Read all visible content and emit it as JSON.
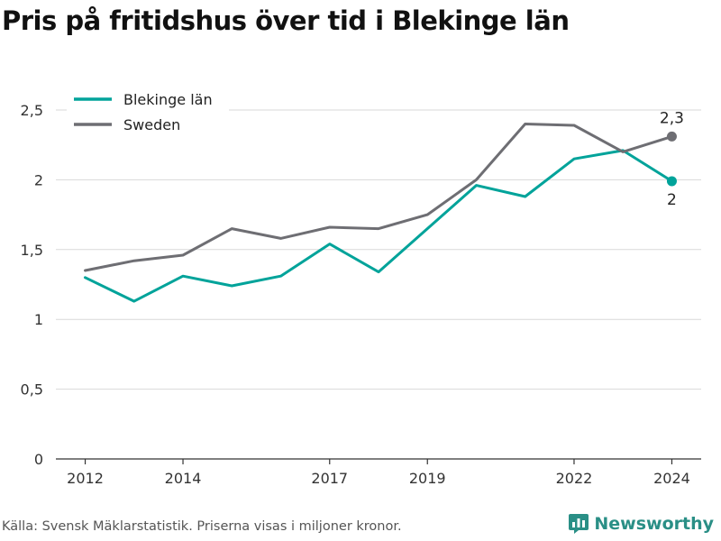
{
  "title": "Pris på fritidshus över tid i Blekinge län",
  "source": "Källa: Svensk Mäklarstatistik. Priserna visas i miljoner kronor.",
  "brand": "Newsworthy",
  "colors": {
    "blekinge": "#00a39a",
    "sweden": "#6e6e73",
    "grid": "#d9d9d9",
    "axis": "#333333",
    "brand": "#2a8f86"
  },
  "chart_data": {
    "type": "line",
    "title": "Pris på fritidshus över tid i Blekinge län",
    "xlabel": "",
    "ylabel": "",
    "x": [
      2012,
      2013,
      2014,
      2015,
      2016,
      2017,
      2018,
      2019,
      2020,
      2021,
      2022,
      2023,
      2024
    ],
    "xticks": [
      2012,
      2014,
      2017,
      2019,
      2022,
      2024
    ],
    "xlim": [
      2011.4,
      2024.6
    ],
    "ylim": [
      0,
      2.5
    ],
    "yticks": [
      {
        "value": 0,
        "label": "0"
      },
      {
        "value": 0.5,
        "label": "0,5"
      },
      {
        "value": 1,
        "label": "1"
      },
      {
        "value": 1.5,
        "label": "1,5"
      },
      {
        "value": 2,
        "label": "2"
      },
      {
        "value": 2.5,
        "label": "2,5"
      }
    ],
    "grid": true,
    "legend_position": "top-left",
    "series": [
      {
        "name": "Blekinge län",
        "color": "#00a39a",
        "values": [
          1.3,
          1.13,
          1.31,
          1.24,
          1.31,
          1.54,
          1.34,
          1.65,
          1.96,
          1.88,
          2.15,
          2.21,
          1.99
        ],
        "end_label": "2",
        "end_label_position": "below"
      },
      {
        "name": "Sweden",
        "color": "#6e6e73",
        "values": [
          1.35,
          1.42,
          1.46,
          1.65,
          1.58,
          1.66,
          1.65,
          1.75,
          2.0,
          2.4,
          2.39,
          2.2,
          2.31
        ],
        "end_label": "2,3",
        "end_label_position": "above"
      }
    ]
  }
}
